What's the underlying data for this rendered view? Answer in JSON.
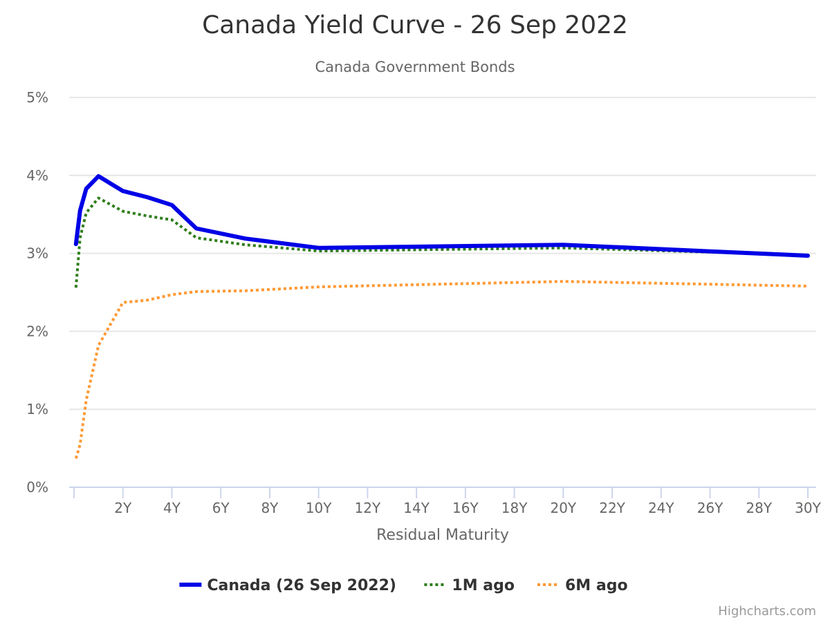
{
  "chart_data": {
    "type": "line",
    "title": "Canada Yield Curve - 26 Sep 2022",
    "subtitle": "Canada Government Bonds",
    "xlabel": "Residual Maturity",
    "ylabel": "",
    "xlim": [
      0,
      30
    ],
    "ylim": [
      0,
      5
    ],
    "x_ticks": [
      2,
      4,
      6,
      8,
      10,
      12,
      14,
      16,
      18,
      20,
      22,
      24,
      26,
      28,
      30
    ],
    "x_tick_labels": [
      "2Y",
      "4Y",
      "6Y",
      "8Y",
      "10Y",
      "12Y",
      "14Y",
      "16Y",
      "18Y",
      "20Y",
      "22Y",
      "24Y",
      "26Y",
      "28Y",
      "30Y"
    ],
    "y_ticks": [
      0,
      1,
      2,
      3,
      4,
      5
    ],
    "y_tick_labels": [
      "0%",
      "1%",
      "2%",
      "3%",
      "4%",
      "5%"
    ],
    "grid": true,
    "legend_position": "bottom-center",
    "series": [
      {
        "name": "Canada (26 Sep 2022)",
        "color": "#0000e6",
        "style": "solid",
        "x": [
          0.08,
          0.25,
          0.5,
          1,
          2,
          3,
          4,
          5,
          7,
          10,
          20,
          30
        ],
        "y": [
          3.12,
          3.55,
          3.83,
          3.99,
          3.8,
          3.72,
          3.62,
          3.32,
          3.19,
          3.07,
          3.11,
          2.97
        ]
      },
      {
        "name": "1M ago",
        "color": "#2e7d1a",
        "style": "dotted",
        "x": [
          0.08,
          0.25,
          0.5,
          1,
          2,
          3,
          4,
          5,
          7,
          10,
          20,
          30
        ],
        "y": [
          2.56,
          3.2,
          3.52,
          3.71,
          3.54,
          3.48,
          3.43,
          3.2,
          3.11,
          3.03,
          3.07,
          2.98
        ]
      },
      {
        "name": "6M ago",
        "color": "#ff9933",
        "style": "dotted",
        "x": [
          0.08,
          0.25,
          0.5,
          1,
          2,
          3,
          4,
          5,
          7,
          10,
          20,
          30
        ],
        "y": [
          0.37,
          0.55,
          1.12,
          1.82,
          2.37,
          2.4,
          2.47,
          2.51,
          2.52,
          2.57,
          2.64,
          2.58
        ]
      }
    ]
  },
  "credits": "Highcharts.com"
}
